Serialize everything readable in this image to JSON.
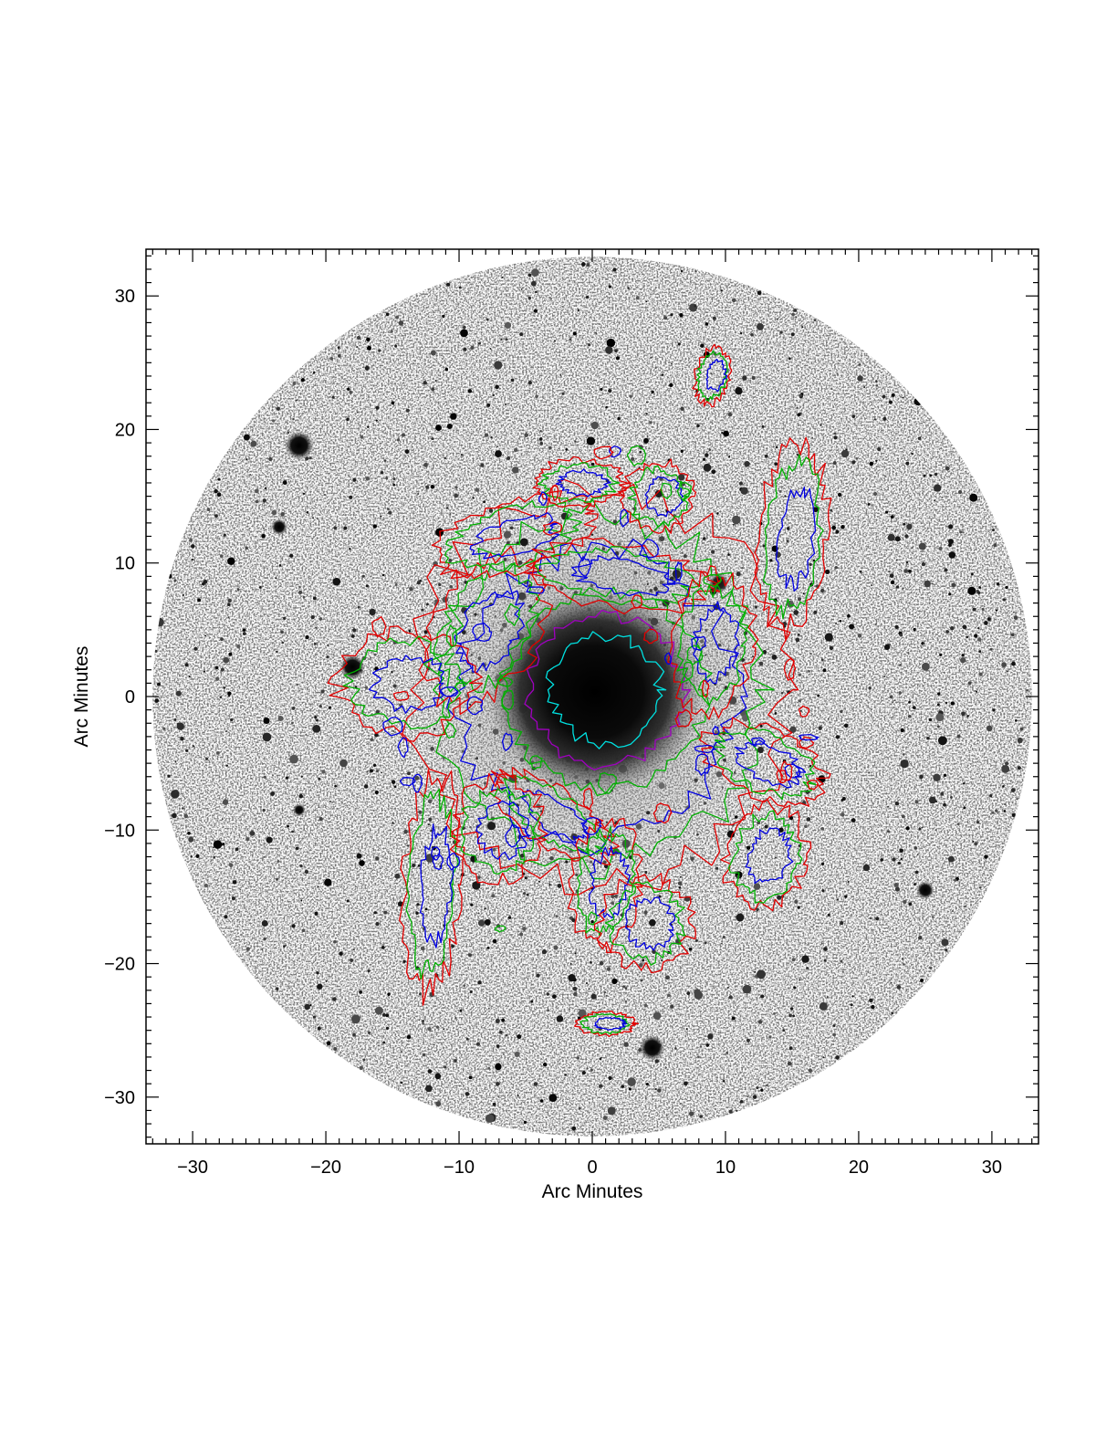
{
  "chart_data": {
    "type": "image-contour",
    "xlabel": "Arc Minutes",
    "ylabel": "Arc Minutes",
    "xlim": [
      -33.5,
      33.5
    ],
    "ylim": [
      -33.5,
      33.5
    ],
    "x_ticks": [
      -30,
      -20,
      -10,
      0,
      10,
      20,
      30
    ],
    "y_ticks": [
      30,
      20,
      10,
      0,
      -10,
      -20,
      -30
    ],
    "x_tick_labels": [
      "−30",
      "−20",
      "−10",
      "0",
      "10",
      "20",
      "30"
    ],
    "y_tick_labels": [
      "30",
      "20",
      "10",
      "0",
      "−10",
      "−20",
      "−30"
    ],
    "minor_tick_step": 1,
    "field_radius": 33,
    "background_colormap": "inverted grayscale",
    "contour_colors": [
      "#e00000",
      "#00b000",
      "#0000e0",
      "#a000c0",
      "#00e0e0"
    ],
    "grid": false
  }
}
